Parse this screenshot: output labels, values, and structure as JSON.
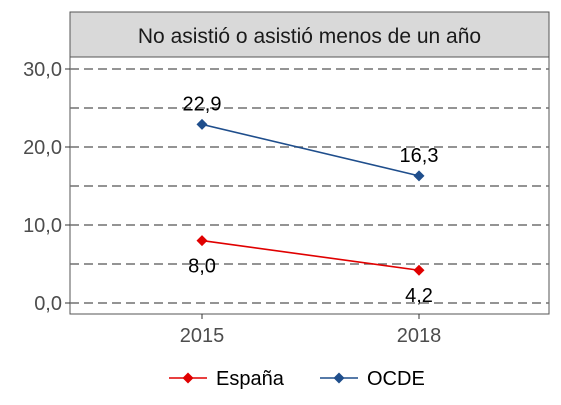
{
  "chart_data": {
    "type": "line",
    "title": "No asistió o asistió menos de un año",
    "categories": [
      "2015",
      "2018"
    ],
    "ylim": [
      0,
      30
    ],
    "y_ticks": [
      "0,0",
      "10,0",
      "20,0",
      "30,0"
    ],
    "grid": "dashed horizontal",
    "legend_position": "bottom",
    "series": [
      {
        "name": "España",
        "color": "#e00000",
        "marker": "diamond",
        "values": [
          8.0,
          4.2
        ],
        "labels": [
          "8,0",
          "4,2"
        ],
        "label_position": "below"
      },
      {
        "name": "OCDE",
        "color": "#1f4e8c",
        "marker": "diamond",
        "values": [
          22.9,
          16.3
        ],
        "labels": [
          "22,9",
          "16,3"
        ],
        "label_position": "above"
      }
    ]
  }
}
